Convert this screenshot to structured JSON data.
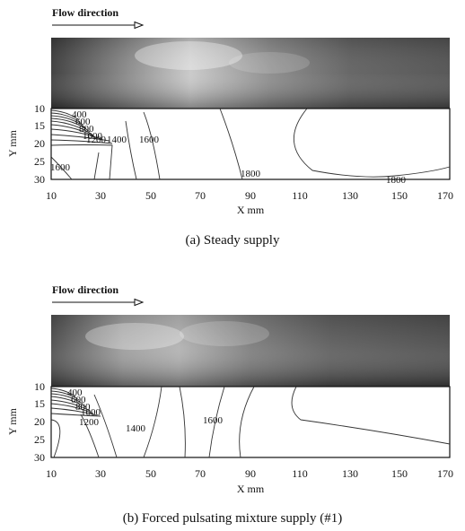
{
  "panels": [
    {
      "flow_label": "Flow direction",
      "caption": "(a) Steady supply",
      "x_axis_label": "X mm",
      "y_axis_label": "Y mm",
      "x_ticks": [
        "10",
        "30",
        "50",
        "70",
        "90",
        "110",
        "130",
        "150",
        "170"
      ],
      "y_ticks": [
        "10",
        "15",
        "20",
        "25",
        "30"
      ],
      "contour_labels": [
        "400",
        "600",
        "800",
        "1000",
        "1200",
        "1400",
        "1600",
        "1600",
        "1800",
        "1800"
      ]
    },
    {
      "flow_label": "Flow direction",
      "caption": "(b) Forced pulsating mixture supply (#1)",
      "x_axis_label": "X mm",
      "y_axis_label": "Y mm",
      "x_ticks": [
        "10",
        "30",
        "50",
        "70",
        "90",
        "110",
        "130",
        "150",
        "170"
      ],
      "y_ticks": [
        "10",
        "15",
        "20",
        "25",
        "30"
      ],
      "contour_labels": [
        "400",
        "600",
        "800",
        "1000",
        "1200",
        "1400",
        "1600"
      ]
    }
  ]
}
